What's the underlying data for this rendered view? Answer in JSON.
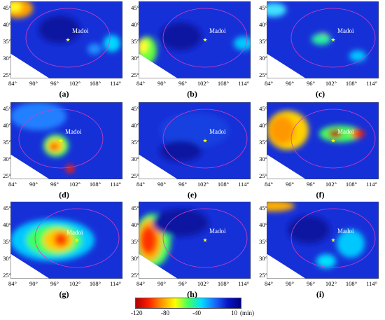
{
  "figure": {
    "station_label": "Madoi",
    "y_ticks": [
      "45°",
      "40°",
      "35°",
      "30°",
      "25°"
    ],
    "x_ticks": [
      "84°",
      "90°",
      "96°",
      "102°",
      "108°",
      "114°"
    ],
    "panels": [
      {
        "label": "(a)"
      },
      {
        "label": "(b)"
      },
      {
        "label": "(c)"
      },
      {
        "label": "(d)"
      },
      {
        "label": "(e)"
      },
      {
        "label": "(f)"
      },
      {
        "label": "(g)"
      },
      {
        "label": "(h)"
      },
      {
        "label": "(i)"
      }
    ],
    "colorbar": {
      "ticks": [
        "-120",
        "-80",
        "-40",
        "10"
      ],
      "unit": "(min)",
      "colors": [
        "#b00000",
        "#ff2000",
        "#ff9800",
        "#ffff00",
        "#40ff60",
        "#00e0ff",
        "#1a6cff",
        "#0a14c8",
        "#000080"
      ]
    },
    "colors": {
      "background": "#1630d8",
      "ring": "#d040c0",
      "star": "#ffff00"
    }
  }
}
